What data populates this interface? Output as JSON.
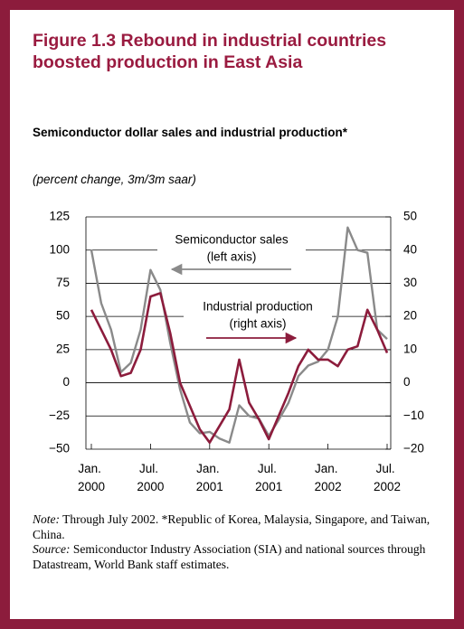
{
  "chart_data": {
    "type": "line",
    "title": "Figure 1.3 Rebound in industrial countries boosted production in East Asia",
    "subtitle": "Semiconductor dollar sales and industrial production*",
    "units": "(percent change, 3m/3m saar)",
    "categories": [
      "Jan. 2000",
      null,
      null,
      null,
      null,
      null,
      "Jul. 2000",
      null,
      null,
      null,
      null,
      null,
      "Jan. 2001",
      null,
      null,
      null,
      null,
      null,
      "Jul. 2001",
      null,
      null,
      null,
      null,
      null,
      "Jan. 2002",
      null,
      null,
      null,
      null,
      null,
      "Jul. 2002"
    ],
    "series": [
      {
        "name": "Semiconductor sales",
        "color": "#8a8a8a",
        "axis": "y",
        "values": [
          100,
          60,
          40,
          8,
          15,
          40,
          85,
          70,
          30,
          -5,
          -30,
          -38,
          -37,
          -42,
          -45,
          -17,
          -25,
          -27,
          -40,
          -28,
          -15,
          5,
          13,
          16,
          25,
          50,
          117,
          100,
          98,
          40,
          33
        ]
      },
      {
        "name": "Industrial production",
        "color": "#8c1c3c",
        "axis": "y2",
        "values": [
          22,
          16,
          10,
          2,
          3,
          10,
          26,
          27,
          15,
          0,
          -7,
          -14,
          -18,
          -13,
          -8,
          7,
          -6,
          -11,
          -17,
          -10,
          -3,
          5,
          10,
          7,
          7,
          5,
          10,
          11,
          22,
          16,
          9
        ]
      }
    ],
    "annotations": [
      {
        "lines": [
          "Semiconductor sales",
          "(left axis)"
        ],
        "arrow": "left"
      },
      {
        "lines": [
          "Industrial production",
          "(right axis)"
        ],
        "arrow": "right"
      }
    ],
    "ylim": [
      -50,
      125
    ],
    "yticks": [
      {
        "value": -50,
        "label": "−50"
      },
      {
        "value": -25,
        "label": "−25"
      },
      0,
      25,
      50,
      75,
      100,
      125
    ],
    "y2lim": [
      -20,
      50
    ],
    "y2ticks": [
      {
        "value": -20,
        "label": "−20"
      },
      {
        "value": -10,
        "label": "−10"
      },
      0,
      10,
      20,
      30,
      40,
      50
    ],
    "grid": true,
    "notes": [
      {
        "label": "Note:",
        "text": "Through July 2002. *Republic of Korea, Malaysia, Singapore, and Taiwan, China."
      },
      {
        "label": "Source:",
        "text": "Semiconductor Industry Association (SIA) and national sources through Datastream, World Bank staff estimates."
      }
    ]
  }
}
